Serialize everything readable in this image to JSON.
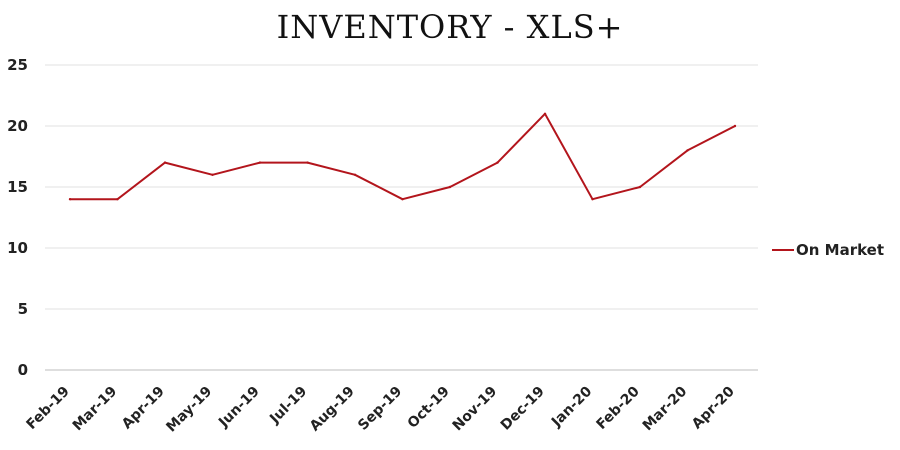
{
  "chart_data": {
    "type": "line",
    "title": "INVENTORY - XLS+",
    "xlabel": "",
    "ylabel": "",
    "categories": [
      "Feb-19",
      "Mar-19",
      "Apr-19",
      "May-19",
      "Jun-19",
      "Jul-19",
      "Aug-19",
      "Sep-19",
      "Oct-19",
      "Nov-19",
      "Dec-19",
      "Jan-20",
      "Feb-20",
      "Mar-20",
      "Apr-20"
    ],
    "series": [
      {
        "name": "On Market",
        "color": "#b3151c",
        "values": [
          14,
          14,
          17,
          16,
          17,
          17,
          16,
          14,
          15,
          17,
          21,
          14,
          15,
          18,
          20
        ]
      }
    ],
    "ylim": [
      0,
      25
    ],
    "yticks": [
      0,
      5,
      10,
      15,
      20,
      25
    ],
    "grid": true,
    "legend": "right"
  }
}
